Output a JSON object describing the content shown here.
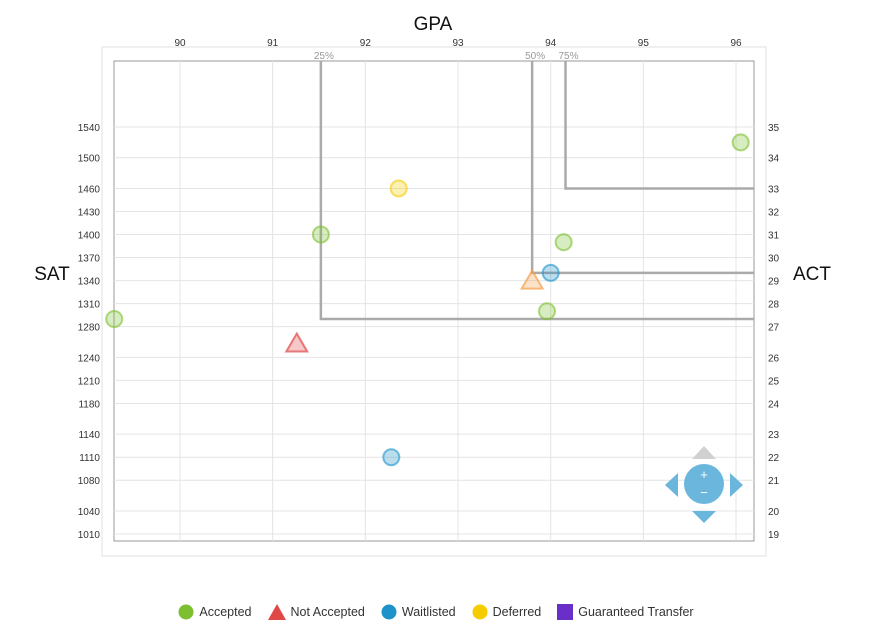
{
  "chart_data": {
    "type": "scatter",
    "title": "GPA",
    "xlabel": "GPA",
    "ylabel": "SAT",
    "y2label": "ACT",
    "xlim": [
      89.29,
      96.19
    ],
    "ylim": [
      1001,
      1626
    ],
    "x_ticks": [
      90,
      91,
      92,
      93,
      94,
      95,
      96
    ],
    "y_ticks": [
      1010,
      1040,
      1080,
      1110,
      1140,
      1180,
      1210,
      1240,
      1280,
      1310,
      1340,
      1370,
      1400,
      1430,
      1460,
      1500,
      1540
    ],
    "y2_ticks": [
      {
        "label": "19",
        "sat": 1010
      },
      {
        "label": "20",
        "sat": 1040
      },
      {
        "label": "21",
        "sat": 1080
      },
      {
        "label": "22",
        "sat": 1110
      },
      {
        "label": "23",
        "sat": 1140
      },
      {
        "label": "24",
        "sat": 1180
      },
      {
        "label": "25",
        "sat": 1210
      },
      {
        "label": "26",
        "sat": 1240
      },
      {
        "label": "27",
        "sat": 1280
      },
      {
        "label": "28",
        "sat": 1310
      },
      {
        "label": "29",
        "sat": 1340
      },
      {
        "label": "30",
        "sat": 1370
      },
      {
        "label": "31",
        "sat": 1400
      },
      {
        "label": "32",
        "sat": 1430
      },
      {
        "label": "33",
        "sat": 1460
      },
      {
        "label": "34",
        "sat": 1500
      },
      {
        "label": "35",
        "sat": 1540
      }
    ],
    "grid": true,
    "percentiles": [
      {
        "label": "25%",
        "gpa": 91.52,
        "sat": 1290
      },
      {
        "label": "50%",
        "gpa": 93.8,
        "sat": 1350
      },
      {
        "label": "75%",
        "gpa": 94.16,
        "sat": 1460
      }
    ],
    "series": [
      {
        "name": "Accepted",
        "shape": "circle",
        "color": "#7cbf2f",
        "points": [
          [
            89.29,
            1290
          ],
          [
            91.52,
            1400
          ],
          [
            94.14,
            1390
          ],
          [
            93.96,
            1300
          ],
          [
            96.05,
            1520
          ]
        ]
      },
      {
        "name": "Not Accepted",
        "shape": "triangle",
        "color": "#e04848",
        "points": [
          [
            91.26,
            1258
          ]
        ]
      },
      {
        "name": "Not Accepted (highlighted)",
        "shape": "triangle",
        "color": "#f5a04a",
        "legend": false,
        "points": [
          [
            93.8,
            1340
          ]
        ]
      },
      {
        "name": "Waitlisted",
        "shape": "circle",
        "color": "#1e93c9",
        "points": [
          [
            94.0,
            1350
          ],
          [
            92.28,
            1110
          ]
        ]
      },
      {
        "name": "Deferred",
        "shape": "circle",
        "color": "#f5cc00",
        "points": [
          [
            92.36,
            1460
          ]
        ]
      },
      {
        "name": "Guaranteed Transfer",
        "shape": "square",
        "color": "#6a2fc9",
        "points": []
      }
    ],
    "legend_position": "bottom"
  },
  "legend": [
    "Accepted",
    "Not Accepted",
    "Waitlisted",
    "Deferred",
    "Guaranteed Transfer"
  ]
}
